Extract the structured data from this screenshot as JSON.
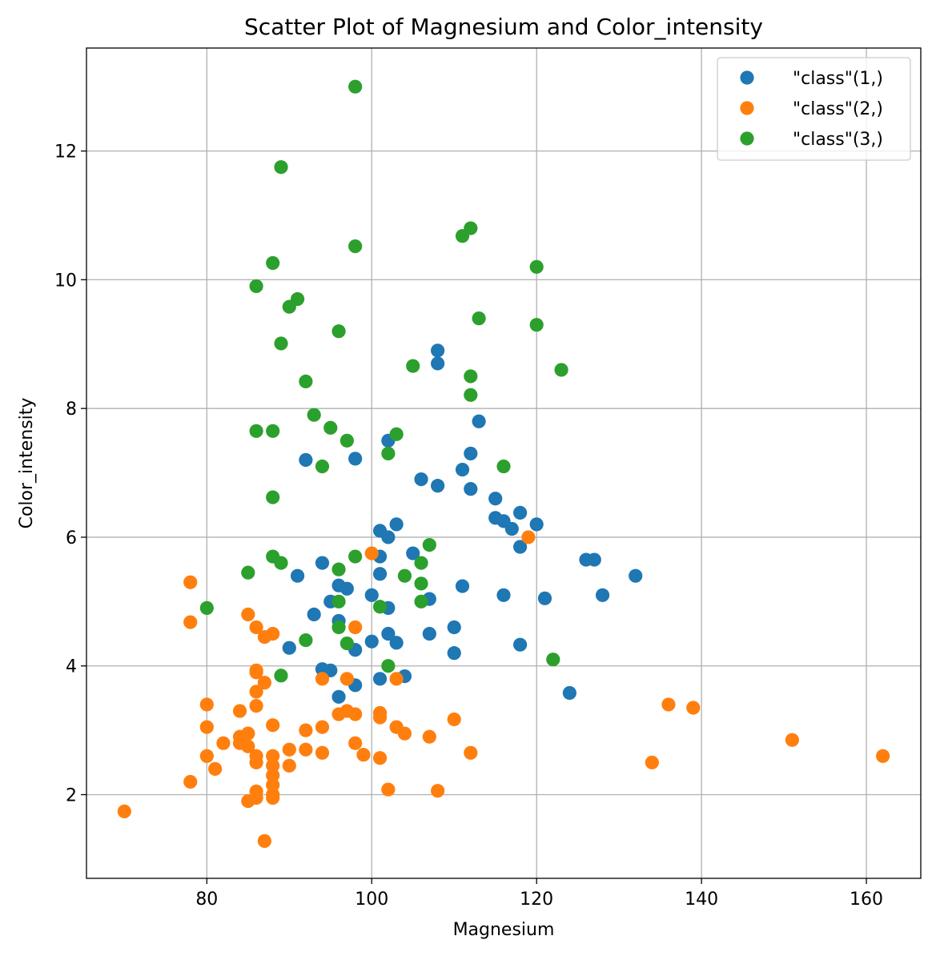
{
  "chart_data": {
    "type": "scatter",
    "title": "Scatter Plot of Magnesium and Color_intensity",
    "xlabel": "Magnesium",
    "ylabel": "Color_intensity",
    "xlim": [
      65.4,
      166.6
    ],
    "ylim": [
      0.7,
      13.6
    ],
    "xticks": [
      80,
      100,
      120,
      140,
      160
    ],
    "yticks": [
      2,
      4,
      6,
      8,
      10,
      12
    ],
    "grid": true,
    "legend_position": "top-right",
    "series": [
      {
        "name": "\"class\"(1,)",
        "color": "#1f77b4",
        "points": [
          [
            92,
            7.2
          ],
          [
            98,
            7.22
          ],
          [
            102,
            7.5
          ],
          [
            106,
            6.9
          ],
          [
            108,
            6.8
          ],
          [
            108,
            8.9
          ],
          [
            108,
            8.7
          ],
          [
            113,
            7.8
          ],
          [
            112,
            7.3
          ],
          [
            111,
            7.05
          ],
          [
            112,
            6.75
          ],
          [
            115,
            6.6
          ],
          [
            115,
            6.3
          ],
          [
            116,
            6.25
          ],
          [
            117,
            6.13
          ],
          [
            118,
            6.38
          ],
          [
            118,
            5.85
          ],
          [
            120,
            6.2
          ],
          [
            126,
            5.65
          ],
          [
            127,
            5.65
          ],
          [
            132,
            5.4
          ],
          [
            128,
            5.1
          ],
          [
            121,
            5.05
          ],
          [
            116,
            5.1
          ],
          [
            111,
            5.24
          ],
          [
            110,
            4.6
          ],
          [
            110,
            4.2
          ],
          [
            118,
            4.33
          ],
          [
            124,
            3.58
          ],
          [
            107,
            5.04
          ],
          [
            107,
            4.5
          ],
          [
            105,
            5.75
          ],
          [
            104,
            3.84
          ],
          [
            103,
            6.2
          ],
          [
            103,
            4.36
          ],
          [
            102,
            6.0
          ],
          [
            102,
            4.9
          ],
          [
            102,
            4.5
          ],
          [
            101,
            6.1
          ],
          [
            101,
            5.7
          ],
          [
            101,
            5.43
          ],
          [
            101,
            3.8
          ],
          [
            100,
            5.1
          ],
          [
            100,
            4.38
          ],
          [
            98,
            4.25
          ],
          [
            98,
            3.7
          ],
          [
            97,
            5.2
          ],
          [
            96,
            5.25
          ],
          [
            96,
            4.7
          ],
          [
            96,
            3.52
          ],
          [
            95,
            5.0
          ],
          [
            95,
            3.93
          ],
          [
            94,
            5.6
          ],
          [
            94,
            3.95
          ],
          [
            93,
            4.8
          ],
          [
            91,
            5.4
          ],
          [
            90,
            4.28
          ]
        ]
      },
      {
        "name": "\"class\"(2,)",
        "color": "#ff7f0e",
        "points": [
          [
            70,
            1.74
          ],
          [
            78,
            5.3
          ],
          [
            78,
            4.68
          ],
          [
            78,
            2.2
          ],
          [
            80,
            3.4
          ],
          [
            80,
            3.05
          ],
          [
            80,
            2.6
          ],
          [
            81,
            2.4
          ],
          [
            82,
            2.8
          ],
          [
            84,
            3.3
          ],
          [
            84,
            2.9
          ],
          [
            84,
            2.8
          ],
          [
            85,
            4.8
          ],
          [
            85,
            2.95
          ],
          [
            85,
            2.75
          ],
          [
            85,
            1.9
          ],
          [
            86,
            4.6
          ],
          [
            86,
            3.93
          ],
          [
            86,
            3.9
          ],
          [
            86,
            3.6
          ],
          [
            86,
            3.38
          ],
          [
            86,
            2.6
          ],
          [
            86,
            2.5
          ],
          [
            86,
            2.05
          ],
          [
            86,
            1.95
          ],
          [
            87,
            4.45
          ],
          [
            87,
            3.74
          ],
          [
            87,
            1.28
          ],
          [
            88,
            4.5
          ],
          [
            88,
            3.08
          ],
          [
            88,
            2.6
          ],
          [
            88,
            2.45
          ],
          [
            88,
            2.3
          ],
          [
            88,
            2.15
          ],
          [
            88,
            2.0
          ],
          [
            88,
            1.95
          ],
          [
            90,
            2.7
          ],
          [
            90,
            2.45
          ],
          [
            92,
            3.0
          ],
          [
            92,
            2.7
          ],
          [
            94,
            3.8
          ],
          [
            94,
            3.05
          ],
          [
            94,
            2.65
          ],
          [
            96,
            3.25
          ],
          [
            97,
            3.8
          ],
          [
            97,
            3.3
          ],
          [
            98,
            4.6
          ],
          [
            98,
            3.25
          ],
          [
            98,
            2.8
          ],
          [
            99,
            2.62
          ],
          [
            100,
            5.75
          ],
          [
            101,
            3.27
          ],
          [
            101,
            3.2
          ],
          [
            101,
            2.57
          ],
          [
            102,
            2.08
          ],
          [
            103,
            3.8
          ],
          [
            103,
            3.05
          ],
          [
            104,
            2.95
          ],
          [
            107,
            2.9
          ],
          [
            108,
            2.06
          ],
          [
            110,
            3.17
          ],
          [
            112,
            2.65
          ],
          [
            119,
            6.0
          ],
          [
            134,
            2.5
          ],
          [
            136,
            3.4
          ],
          [
            139,
            3.35
          ],
          [
            151,
            2.85
          ],
          [
            162,
            2.6
          ]
        ]
      },
      {
        "name": "\"class\"(3,)",
        "color": "#2ca02c",
        "points": [
          [
            98,
            13.0
          ],
          [
            89,
            11.75
          ],
          [
            98,
            10.52
          ],
          [
            88,
            10.26
          ],
          [
            86,
            9.9
          ],
          [
            90,
            9.58
          ],
          [
            91,
            9.7
          ],
          [
            96,
            9.2
          ],
          [
            89,
            9.01
          ],
          [
            92,
            8.42
          ],
          [
            93,
            7.9
          ],
          [
            95,
            7.7
          ],
          [
            97,
            7.5
          ],
          [
            94,
            7.1
          ],
          [
            86,
            7.65
          ],
          [
            88,
            7.65
          ],
          [
            88,
            6.62
          ],
          [
            88,
            5.7
          ],
          [
            89,
            5.6
          ],
          [
            85,
            5.45
          ],
          [
            80,
            4.9
          ],
          [
            92,
            4.4
          ],
          [
            89,
            3.85
          ],
          [
            96,
            5.5
          ],
          [
            96,
            5.0
          ],
          [
            96,
            4.6
          ],
          [
            97,
            4.35
          ],
          [
            98,
            5.7
          ],
          [
            101,
            4.92
          ],
          [
            102,
            7.3
          ],
          [
            102,
            4.0
          ],
          [
            103,
            7.6
          ],
          [
            104,
            5.4
          ],
          [
            105,
            8.66
          ],
          [
            106,
            5.6
          ],
          [
            106,
            5.28
          ],
          [
            106,
            5.0
          ],
          [
            107,
            5.88
          ],
          [
            111,
            10.68
          ],
          [
            112,
            10.8
          ],
          [
            112,
            8.5
          ],
          [
            112,
            8.21
          ],
          [
            113,
            9.4
          ],
          [
            116,
            7.1
          ],
          [
            120,
            10.2
          ],
          [
            120,
            9.3
          ],
          [
            122,
            4.1
          ],
          [
            123,
            8.6
          ]
        ]
      }
    ]
  }
}
